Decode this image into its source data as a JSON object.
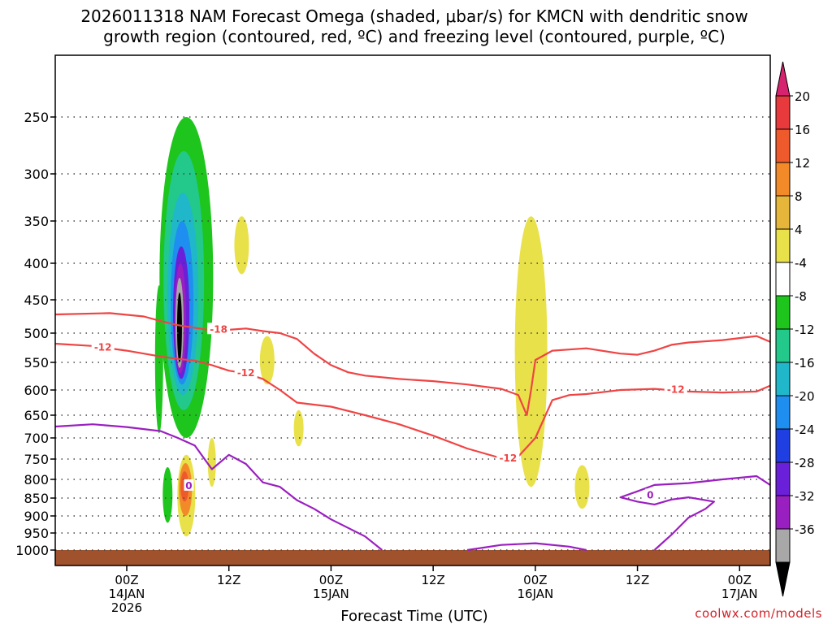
{
  "chart_data": {
    "type": "heatmap",
    "title_line1": "2026011318 NAM Forecast Omega (shaded, μbar/s) for KMCN with dendritic snow",
    "title_line2": "growth region (contoured, red, ºC) and freezing level (contoured, purple, ºC)",
    "xlabel": "Forecast Time (UTC)",
    "credit": "coolwx.com/models",
    "x_unit": "hours from 2026011318",
    "xlim": [
      -2.4,
      81.6
    ],
    "x_ticks": [
      {
        "hour": 6,
        "line1": "00Z",
        "line2": "14JAN",
        "line3": "2026"
      },
      {
        "hour": 18,
        "line1": "12Z",
        "line2": "",
        "line3": ""
      },
      {
        "hour": 30,
        "line1": "00Z",
        "line2": "15JAN",
        "line3": ""
      },
      {
        "hour": 42,
        "line1": "12Z",
        "line2": "",
        "line3": ""
      },
      {
        "hour": 54,
        "line1": "00Z",
        "line2": "16JAN",
        "line3": ""
      },
      {
        "hour": 66,
        "line1": "12Z",
        "line2": "",
        "line3": ""
      },
      {
        "hour": 78,
        "line1": "00Z",
        "line2": "17JAN",
        "line3": ""
      }
    ],
    "y_unit": "hPa",
    "y_levels": [
      250,
      300,
      350,
      400,
      450,
      500,
      550,
      600,
      650,
      700,
      750,
      800,
      850,
      900,
      950,
      1000
    ],
    "y_labels": [
      "250",
      "300",
      "350",
      "400",
      "450",
      "500",
      "550",
      "600",
      "650",
      "700",
      "750",
      "800",
      "850",
      "900",
      "950",
      "1000"
    ],
    "colorbar": {
      "labels": [
        "20",
        "16",
        "12",
        "8",
        "4",
        "-4",
        "-8",
        "-12",
        "-16",
        "-20",
        "-24",
        "-28",
        "-32",
        "-36"
      ],
      "colors": [
        "#d6226f",
        "#e8393c",
        "#ef5a2c",
        "#f28a2a",
        "#e6b63a",
        "#e9e14a",
        "#ffffff",
        "#1dc51d",
        "#22c98a",
        "#1fb7c9",
        "#1e8ef0",
        "#1f3fe3",
        "#6a1fd8",
        "#9a1fc0",
        "#a8a8a8",
        "#000000"
      ]
    },
    "terrain_color": "#a0522d",
    "shaded_regions": [
      {
        "name": "main-uvv-column",
        "omega_min": -36,
        "hour_center": 13.0,
        "p_top": 250,
        "p_bottom": 700
      },
      {
        "name": "left-weak-band",
        "omega": -8,
        "hour_center": 9.8,
        "p_top": 430,
        "p_bottom": 690
      },
      {
        "name": "low-level-sink",
        "omega_max": 16,
        "hour_center": 13.0,
        "p_top": 740,
        "p_bottom": 960
      },
      {
        "name": "subsidence-pocket-1",
        "omega": 4,
        "hour_center": 19.5,
        "p_top": 345,
        "p_bottom": 415
      },
      {
        "name": "subsidence-pocket-2",
        "omega": 4,
        "hour_center": 22.5,
        "p_top": 505,
        "p_bottom": 590
      },
      {
        "name": "subsidence-column-16jan",
        "omega": 4,
        "hour_center": 53.5,
        "p_top": 345,
        "p_bottom": 820
      },
      {
        "name": "subsidence-pocket-3",
        "omega": 4,
        "hour_center": 59.5,
        "p_top": 765,
        "p_bottom": 880
      }
    ],
    "contours": [
      {
        "name": "dgz-upper",
        "kind": "dendritic growth -18C",
        "color": "#ef4444",
        "label": "-18",
        "points": [
          [
            -2.4,
            472
          ],
          [
            4,
            470
          ],
          [
            8,
            475
          ],
          [
            10,
            482
          ],
          [
            12,
            488
          ],
          [
            14,
            492
          ],
          [
            16,
            496
          ],
          [
            18,
            495
          ],
          [
            20,
            493
          ],
          [
            22,
            497
          ],
          [
            24,
            500
          ],
          [
            26,
            510
          ],
          [
            28,
            535
          ],
          [
            30,
            555
          ],
          [
            32,
            568
          ],
          [
            34,
            574
          ],
          [
            38,
            580
          ],
          [
            42,
            584
          ],
          [
            46,
            590
          ],
          [
            50,
            598
          ],
          [
            52,
            610
          ],
          [
            53,
            650
          ],
          [
            53.5,
            600
          ],
          [
            54,
            546
          ],
          [
            56,
            530
          ],
          [
            60,
            526
          ],
          [
            64,
            535
          ],
          [
            66,
            537
          ],
          [
            68,
            530
          ],
          [
            70,
            520
          ],
          [
            72,
            516
          ],
          [
            76,
            512
          ],
          [
            80,
            505
          ],
          [
            81.6,
            515
          ]
        ]
      },
      {
        "name": "dgz-lower",
        "kind": "dendritic growth -12C",
        "color": "#ef4444",
        "label": "-12",
        "points": [
          [
            -2.4,
            518
          ],
          [
            2,
            522
          ],
          [
            6,
            530
          ],
          [
            10,
            540
          ],
          [
            12,
            544
          ],
          [
            14,
            547
          ],
          [
            16,
            555
          ],
          [
            18,
            565
          ],
          [
            20,
            570
          ],
          [
            22,
            580
          ],
          [
            24,
            600
          ],
          [
            26,
            625
          ],
          [
            30,
            633
          ],
          [
            34,
            650
          ],
          [
            38,
            670
          ],
          [
            42,
            695
          ],
          [
            46,
            725
          ],
          [
            50,
            748
          ],
          [
            52,
            744
          ],
          [
            54,
            700
          ],
          [
            56,
            620
          ],
          [
            58,
            610
          ],
          [
            60,
            608
          ],
          [
            64,
            600
          ],
          [
            68,
            598
          ],
          [
            72,
            603
          ],
          [
            76,
            605
          ],
          [
            80,
            603
          ],
          [
            81.6,
            592
          ]
        ]
      },
      {
        "name": "freezing-level",
        "kind": "0C isotherm",
        "color": "#9a1fc0",
        "label": "0",
        "points": [
          [
            -2.4,
            675
          ],
          [
            2,
            670
          ],
          [
            6,
            676
          ],
          [
            10,
            685
          ],
          [
            12,
            700
          ],
          [
            14,
            718
          ],
          [
            16,
            775
          ],
          [
            18,
            740
          ],
          [
            20,
            762
          ],
          [
            22,
            808
          ],
          [
            24,
            820
          ],
          [
            26,
            856
          ],
          [
            28,
            880
          ],
          [
            30,
            910
          ],
          [
            32,
            935
          ],
          [
            34,
            960
          ],
          [
            36,
            1000
          ]
        ]
      },
      {
        "name": "freezing-level-pocket",
        "kind": "0C isotherm",
        "color": "#9a1fc0",
        "label": "0",
        "points": [
          [
            46,
            1000
          ],
          [
            50,
            985
          ],
          [
            54,
            980
          ],
          [
            58,
            990
          ],
          [
            60,
            1000
          ]
        ]
      },
      {
        "name": "freezing-level-right",
        "kind": "0C isotherm",
        "color": "#9a1fc0",
        "label": "0",
        "points": [
          [
            68,
            1000
          ],
          [
            70,
            955
          ],
          [
            72,
            905
          ],
          [
            74,
            880
          ],
          [
            75,
            860
          ],
          [
            72,
            848
          ],
          [
            70,
            854
          ],
          [
            68,
            868
          ],
          [
            66,
            860
          ],
          [
            64,
            848
          ],
          [
            66,
            832
          ],
          [
            68,
            815
          ],
          [
            72,
            810
          ],
          [
            76,
            800
          ],
          [
            80,
            792
          ],
          [
            81.6,
            815
          ]
        ]
      }
    ]
  }
}
